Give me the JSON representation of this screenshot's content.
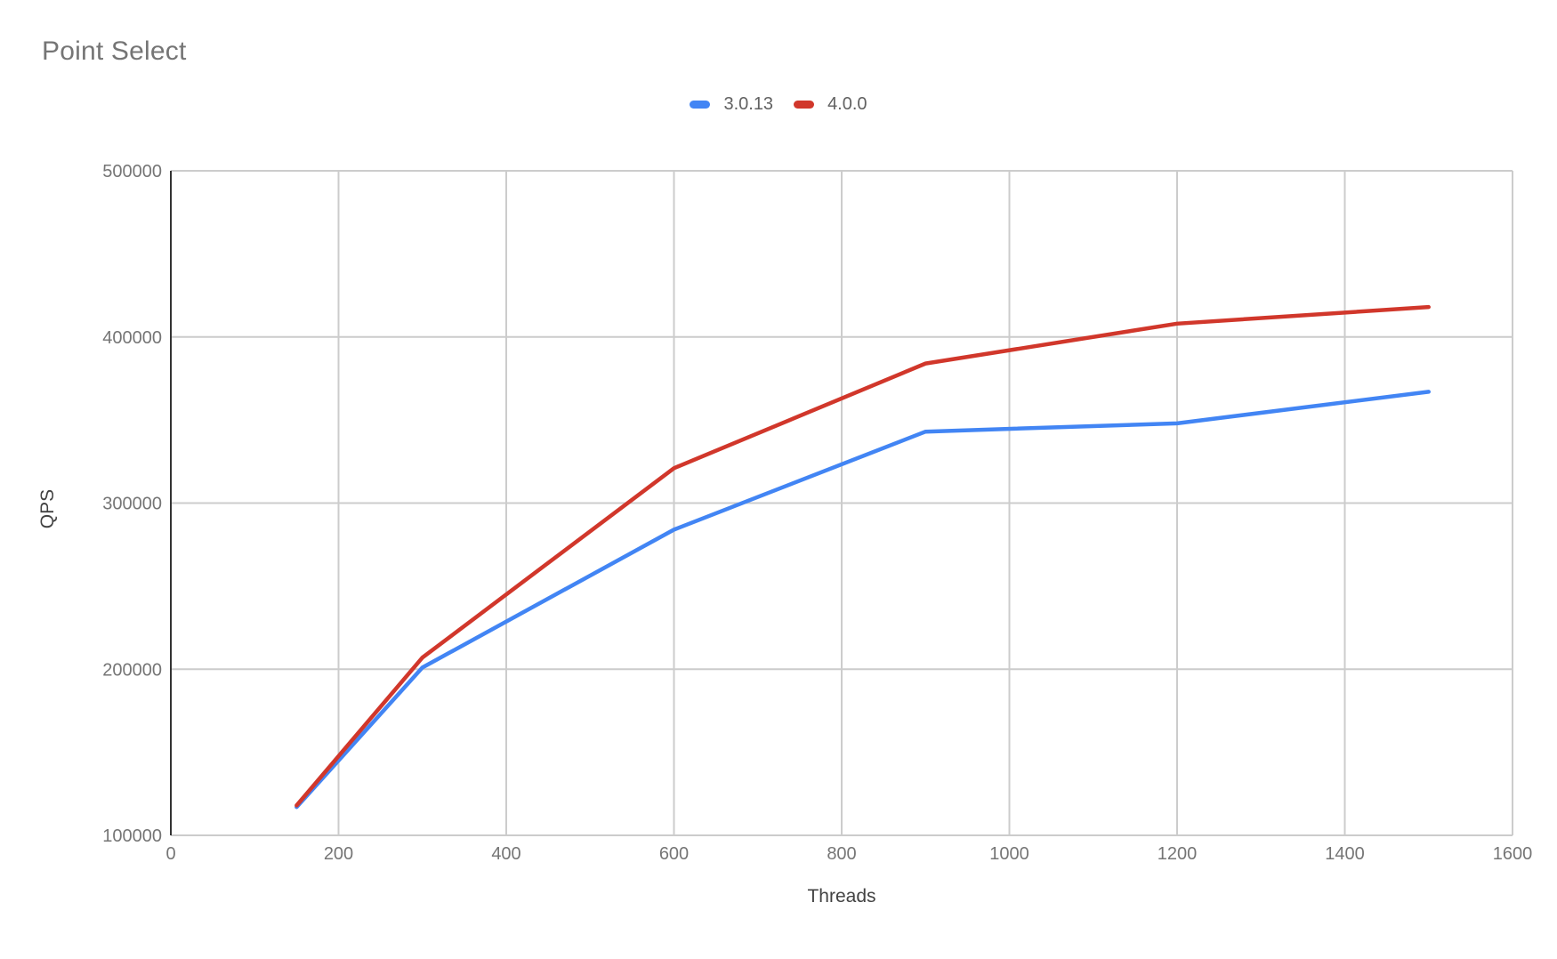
{
  "page": {
    "title": "Point Select"
  },
  "colors": {
    "title_text": "#757575",
    "tick_label_text": "#757575",
    "axis_title_text": "#424242",
    "legend_text": "#616161",
    "gridline": "#cccccc",
    "y_axis_line": "#333333",
    "background": "#ffffff",
    "series_blue": "#4285f4",
    "series_red": "#d1372b"
  },
  "chart_data": {
    "type": "line",
    "title": "Point Select",
    "xlabel": "Threads",
    "ylabel": "QPS",
    "x": [
      150,
      300,
      600,
      900,
      1200,
      1500
    ],
    "series": [
      {
        "name": "3.0.13",
        "color": "#4285f4",
        "values": [
          117000,
          201000,
          284000,
          343000,
          348000,
          367000
        ]
      },
      {
        "name": "4.0.0",
        "color": "#d1372b",
        "values": [
          118000,
          207000,
          321000,
          384000,
          408000,
          418000
        ]
      }
    ],
    "xlim": [
      0,
      1600
    ],
    "ylim": [
      100000,
      500000
    ],
    "x_ticks": [
      0,
      200,
      400,
      600,
      800,
      1000,
      1200,
      1400,
      1600
    ],
    "y_ticks": [
      100000,
      200000,
      300000,
      400000,
      500000
    ],
    "grid": true,
    "legend_position": "top"
  }
}
